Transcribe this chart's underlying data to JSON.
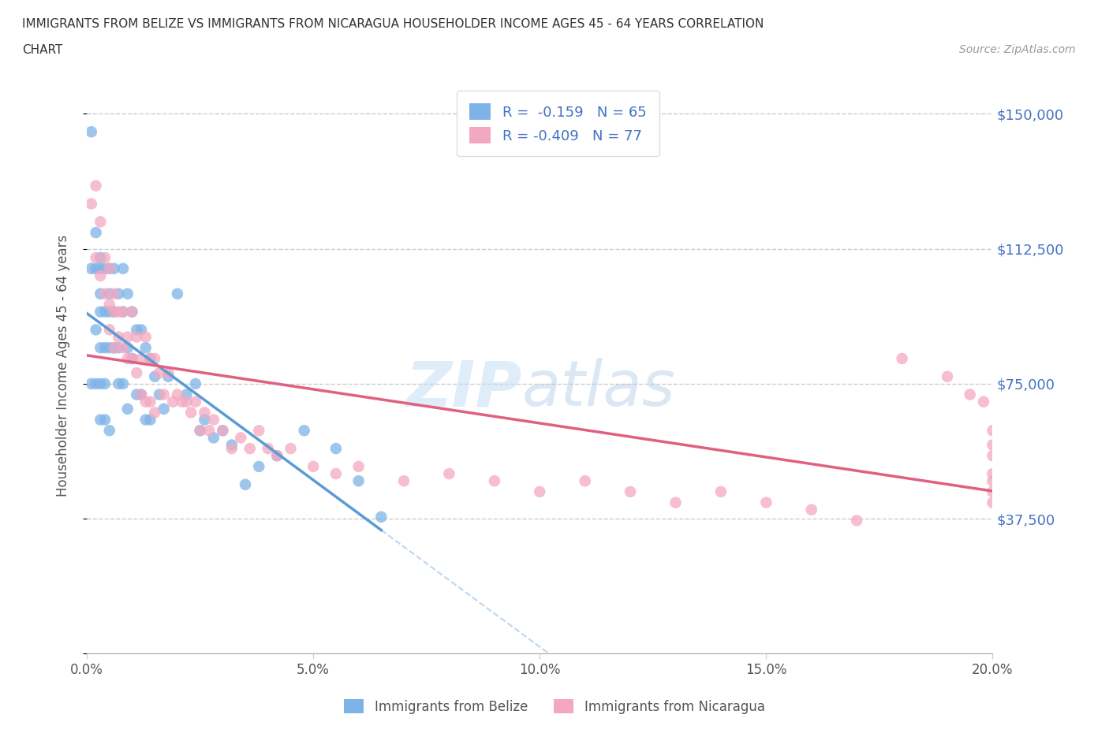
{
  "title_line1": "IMMIGRANTS FROM BELIZE VS IMMIGRANTS FROM NICARAGUA HOUSEHOLDER INCOME AGES 45 - 64 YEARS CORRELATION",
  "title_line2": "CHART",
  "source": "Source: ZipAtlas.com",
  "ylabel": "Householder Income Ages 45 - 64 years",
  "belize_color": "#7eb3e8",
  "nicaragua_color": "#f4a8c0",
  "belize_line_color": "#5b9bd5",
  "nicaragua_line_color": "#e06080",
  "dashed_color": "#aaccee",
  "belize_R": -0.159,
  "belize_N": 65,
  "nicaragua_R": -0.409,
  "nicaragua_N": 77,
  "x_min": 0.0,
  "x_max": 0.2,
  "y_min": 0,
  "y_max": 160000,
  "y_ticks": [
    0,
    37500,
    75000,
    112500,
    150000
  ],
  "y_tick_labels": [
    "",
    "$37,500",
    "$75,000",
    "$112,500",
    "$150,000"
  ],
  "x_ticks": [
    0.0,
    0.05,
    0.1,
    0.15,
    0.2
  ],
  "x_tick_labels": [
    "0.0%",
    "5.0%",
    "10.0%",
    "15.0%",
    "20.0%"
  ],
  "watermark_zip": "ZIP",
  "watermark_atlas": "atlas",
  "legend_belize": "Immigrants from Belize",
  "legend_nicaragua": "Immigrants from Nicaragua",
  "belize_x": [
    0.001,
    0.001,
    0.001,
    0.002,
    0.002,
    0.002,
    0.002,
    0.003,
    0.003,
    0.003,
    0.003,
    0.003,
    0.003,
    0.003,
    0.004,
    0.004,
    0.004,
    0.004,
    0.004,
    0.005,
    0.005,
    0.005,
    0.005,
    0.005,
    0.006,
    0.006,
    0.006,
    0.007,
    0.007,
    0.007,
    0.008,
    0.008,
    0.008,
    0.009,
    0.009,
    0.009,
    0.01,
    0.01,
    0.011,
    0.011,
    0.012,
    0.012,
    0.013,
    0.013,
    0.014,
    0.014,
    0.015,
    0.016,
    0.017,
    0.018,
    0.02,
    0.022,
    0.024,
    0.025,
    0.026,
    0.028,
    0.03,
    0.032,
    0.035,
    0.038,
    0.042,
    0.048,
    0.055,
    0.06,
    0.065
  ],
  "belize_y": [
    145000,
    107000,
    75000,
    117000,
    107000,
    90000,
    75000,
    110000,
    107000,
    100000,
    95000,
    85000,
    75000,
    65000,
    107000,
    95000,
    85000,
    75000,
    65000,
    107000,
    100000,
    95000,
    85000,
    62000,
    107000,
    95000,
    85000,
    100000,
    85000,
    75000,
    107000,
    95000,
    75000,
    100000,
    85000,
    68000,
    95000,
    82000,
    90000,
    72000,
    90000,
    72000,
    85000,
    65000,
    82000,
    65000,
    77000,
    72000,
    68000,
    77000,
    100000,
    72000,
    75000,
    62000,
    65000,
    60000,
    62000,
    58000,
    47000,
    52000,
    55000,
    62000,
    57000,
    48000,
    38000
  ],
  "nicaragua_x": [
    0.001,
    0.002,
    0.002,
    0.003,
    0.003,
    0.004,
    0.004,
    0.005,
    0.005,
    0.005,
    0.006,
    0.006,
    0.006,
    0.007,
    0.007,
    0.008,
    0.008,
    0.009,
    0.009,
    0.01,
    0.01,
    0.011,
    0.011,
    0.012,
    0.012,
    0.013,
    0.013,
    0.014,
    0.014,
    0.015,
    0.015,
    0.016,
    0.017,
    0.018,
    0.019,
    0.02,
    0.021,
    0.022,
    0.023,
    0.024,
    0.025,
    0.026,
    0.027,
    0.028,
    0.03,
    0.032,
    0.034,
    0.036,
    0.038,
    0.04,
    0.042,
    0.045,
    0.05,
    0.055,
    0.06,
    0.07,
    0.08,
    0.09,
    0.1,
    0.11,
    0.12,
    0.13,
    0.14,
    0.15,
    0.16,
    0.17,
    0.18,
    0.19,
    0.195,
    0.198,
    0.2,
    0.2,
    0.2,
    0.2,
    0.2,
    0.2,
    0.2
  ],
  "nicaragua_y": [
    125000,
    130000,
    110000,
    120000,
    105000,
    110000,
    100000,
    107000,
    97000,
    90000,
    100000,
    95000,
    85000,
    95000,
    88000,
    95000,
    85000,
    88000,
    82000,
    95000,
    82000,
    88000,
    78000,
    82000,
    72000,
    88000,
    70000,
    82000,
    70000,
    82000,
    67000,
    78000,
    72000,
    78000,
    70000,
    72000,
    70000,
    70000,
    67000,
    70000,
    62000,
    67000,
    62000,
    65000,
    62000,
    57000,
    60000,
    57000,
    62000,
    57000,
    55000,
    57000,
    52000,
    50000,
    52000,
    48000,
    50000,
    48000,
    45000,
    48000,
    45000,
    42000,
    45000,
    42000,
    40000,
    37000,
    82000,
    77000,
    72000,
    70000,
    62000,
    58000,
    55000,
    50000,
    48000,
    45000,
    42000
  ]
}
